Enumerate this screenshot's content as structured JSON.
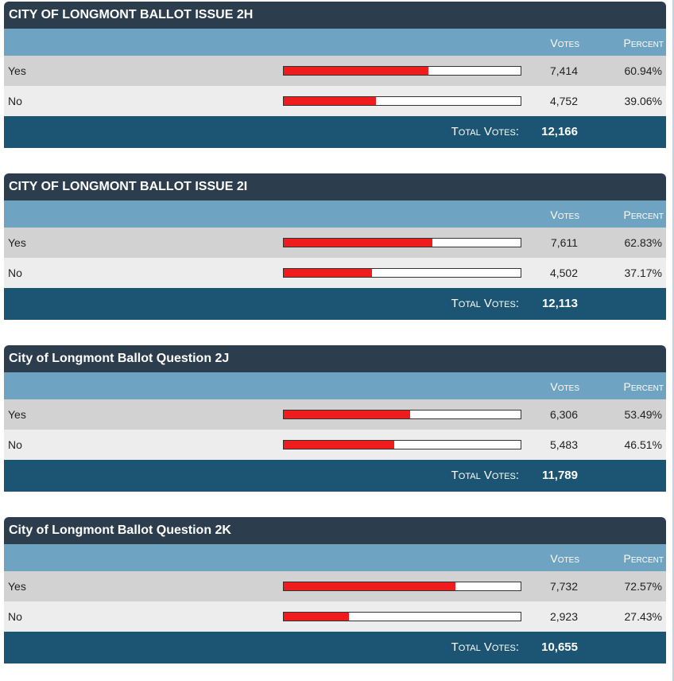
{
  "columns": {
    "votes_label": "Votes",
    "percent_label": "Percent",
    "total_label": "Total Votes:"
  },
  "bar_color": "#ee1c1c",
  "contests": [
    {
      "title": "CITY OF LONGMONT BALLOT ISSUE 2H",
      "options": [
        {
          "label": "Yes",
          "votes": "7,414",
          "percent": "60.94%",
          "fraction": 0.6094
        },
        {
          "label": "No",
          "votes": "4,752",
          "percent": "39.06%",
          "fraction": 0.3906
        }
      ],
      "total_votes": "12,166"
    },
    {
      "title": "CITY OF LONGMONT BALLOT ISSUE 2I",
      "options": [
        {
          "label": "Yes",
          "votes": "7,611",
          "percent": "62.83%",
          "fraction": 0.6283
        },
        {
          "label": "No",
          "votes": "4,502",
          "percent": "37.17%",
          "fraction": 0.3717
        }
      ],
      "total_votes": "12,113"
    },
    {
      "title": "City of Longmont Ballot Question 2J",
      "options": [
        {
          "label": "Yes",
          "votes": "6,306",
          "percent": "53.49%",
          "fraction": 0.5349
        },
        {
          "label": "No",
          "votes": "5,483",
          "percent": "46.51%",
          "fraction": 0.4651
        }
      ],
      "total_votes": "11,789"
    },
    {
      "title": "City of Longmont Ballot Question 2K",
      "options": [
        {
          "label": "Yes",
          "votes": "7,732",
          "percent": "72.57%",
          "fraction": 0.7257
        },
        {
          "label": "No",
          "votes": "2,923",
          "percent": "27.43%",
          "fraction": 0.2743
        }
      ],
      "total_votes": "10,655"
    }
  ]
}
